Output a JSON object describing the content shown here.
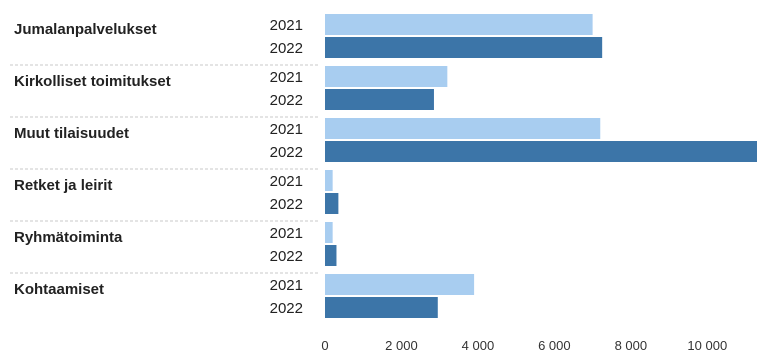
{
  "chart_data": {
    "type": "bar",
    "orientation": "horizontal",
    "categories": [
      "Jumalanpalvelukset",
      "Kirkolliset toimitukset",
      "Muut tilaisuudet",
      "Retket ja leirit",
      "Ryhmätoiminta",
      "Kohtaamiset"
    ],
    "series": [
      {
        "name": "2021",
        "values": [
          7000,
          3200,
          7200,
          200,
          200,
          3900
        ]
      },
      {
        "name": "2022",
        "values": [
          7250,
          2850,
          11300,
          350,
          300,
          2950
        ]
      }
    ],
    "x_ticks": [
      "0",
      "2 000",
      "4 000",
      "6 000",
      "8 000",
      "10 000"
    ],
    "xlim": [
      0,
      11500
    ],
    "grid": false,
    "legend": "none",
    "colors": {
      "2021": "#a8cdf0",
      "2022": "#3c75a8"
    }
  }
}
